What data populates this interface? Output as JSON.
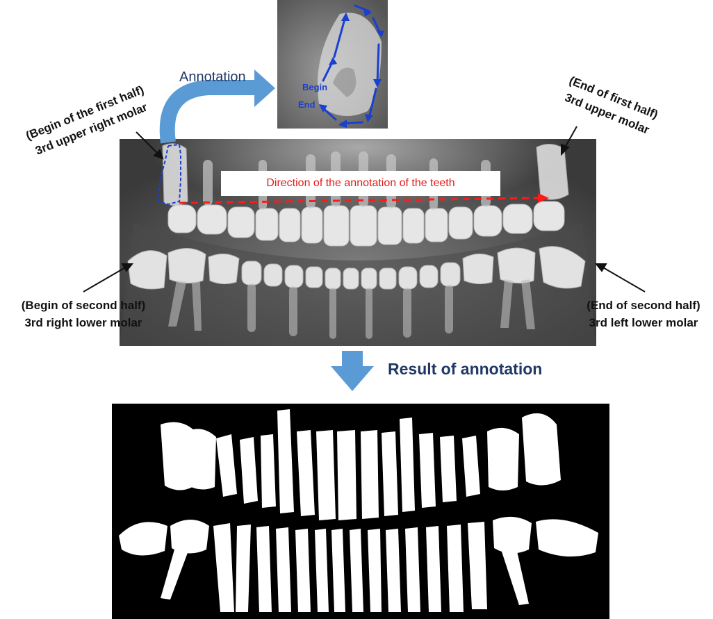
{
  "annotation_label": "Annotation",
  "inset": {
    "begin_label": "Begin",
    "end_label": "End"
  },
  "direction_label": "Direction of the annotation of the teeth",
  "labels": {
    "begin_first_half_line1": "(Begin of the first half)",
    "begin_first_half_line2": "3rd upper right molar",
    "end_first_half_line1": "(End of first half)",
    "end_first_half_line2": "3rd upper molar",
    "begin_second_half_line1": "(Begin of second half)",
    "begin_second_half_line2": "3rd right lower molar",
    "end_second_half_line1": "(End of second half)",
    "end_second_half_line2": "3rd left lower molar"
  },
  "result_label": "Result of annotation",
  "colors": {
    "flow_arrow": "#5b9bd5",
    "direction_arrow": "#ff1a1a",
    "annotation_trace": "#1a3fd1",
    "title_text": "#1f3864"
  }
}
